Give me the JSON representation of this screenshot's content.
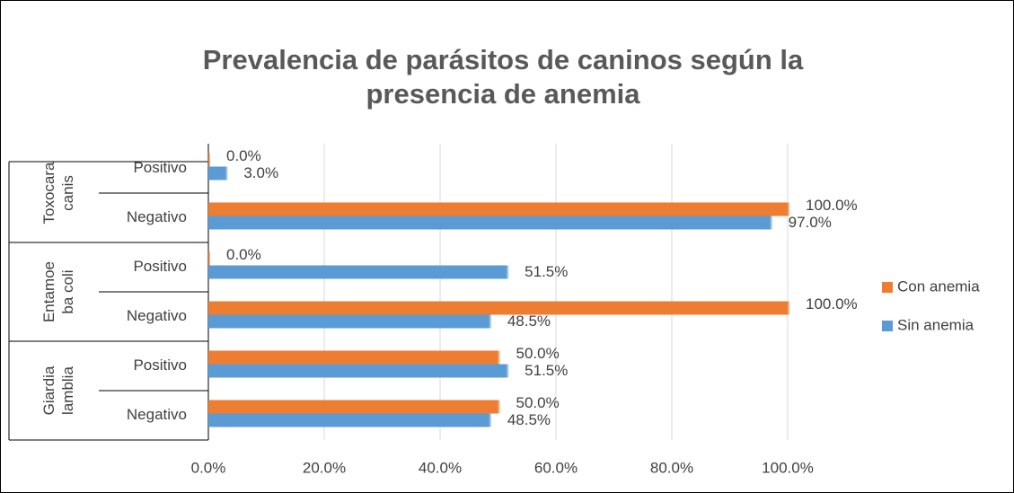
{
  "chart_data": {
    "type": "bar",
    "orientation": "horizontal",
    "title": "Prevalencia de parásitos de caninos según la presencia de anemia",
    "groups": [
      {
        "name": "Toxocara canis",
        "categories": [
          0,
          1
        ]
      },
      {
        "name": "Entamoeba coli",
        "categories": [
          2,
          3
        ]
      },
      {
        "name": "Giardia lamblia",
        "categories": [
          4,
          5
        ]
      }
    ],
    "categories": [
      "Positivo",
      "Negativo",
      "Positivo",
      "Negativo",
      "Positivo",
      "Negativo"
    ],
    "series": [
      {
        "name": "Con anemia",
        "color": "#ed7d31",
        "values": [
          0,
          100,
          0,
          100,
          50,
          50
        ],
        "value_labels": [
          "0.0%",
          "100.0%",
          "0.0%",
          "100.0%",
          "50.0%",
          "50.0%"
        ]
      },
      {
        "name": "Sin anemia",
        "color": "#5b9bd5",
        "values": [
          3,
          97,
          51.5,
          48.5,
          51.5,
          48.5
        ],
        "value_labels": [
          "3.0%",
          "97.0%",
          "51.5%",
          "48.5%",
          "51.5%",
          "48.5%"
        ]
      }
    ],
    "xlim": [
      0,
      100
    ],
    "xticks": [
      {
        "value": 0,
        "label": "0.0%"
      },
      {
        "value": 20,
        "label": "20.0%"
      },
      {
        "value": 40,
        "label": "40.0%"
      },
      {
        "value": 60,
        "label": "60.0%"
      },
      {
        "value": 80,
        "label": "80.0%"
      },
      {
        "value": 100,
        "label": "100.0%"
      }
    ],
    "grid": true,
    "legend": "right"
  }
}
